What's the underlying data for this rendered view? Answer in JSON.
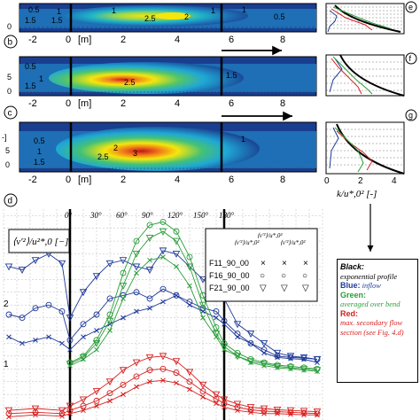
{
  "panels": {
    "a": {
      "label": "a",
      "contours": [
        "0.5",
        "1",
        "1.5",
        "1",
        "2.5",
        "2",
        "1",
        "1",
        "0.5",
        "1.5"
      ]
    },
    "b": {
      "label": "b",
      "contours": [
        "0.5",
        "1",
        "1.5",
        "2.5",
        "1.5"
      ]
    },
    "c": {
      "label": "c",
      "contours": [
        "0.5",
        "1",
        "1.5",
        "2",
        "2.5",
        "3",
        "1"
      ]
    },
    "d": {
      "label": "d"
    },
    "e": {
      "label": "e"
    },
    "f": {
      "label": "f"
    },
    "g": {
      "label": "g"
    }
  },
  "x_axis_ticks": [
    "-2",
    "0",
    "[m]",
    "2",
    "4",
    "6",
    "8"
  ],
  "side_xlabel": "k/u*,0² [-]",
  "side_ticks": [
    "0",
    "2",
    "4"
  ],
  "panel_c_left_tick": "-]",
  "angle_ticks": [
    "0°",
    "30°",
    "60°",
    "90°",
    "120°",
    "150°",
    "180°"
  ],
  "d_ylabel": "⟨v'²⟩/u²*,0 [−]",
  "d_yticks": [
    "2",
    "1"
  ],
  "series_legend": {
    "headers": [
      "⟨v'²⟩/u*,0²",
      "⟨v'²⟩/u*,0²",
      "⟨v'²⟩/u*,0²"
    ],
    "rows": [
      {
        "name": "F11_90_00",
        "symbols": [
          "×",
          "×",
          "×"
        ]
      },
      {
        "name": "F16_90_00",
        "symbols": [
          "○",
          "○",
          "○"
        ]
      },
      {
        "name": "F21_90_00",
        "symbols": [
          "▽",
          "▽",
          "▽"
        ]
      }
    ]
  },
  "legend": {
    "black_title": "Black:",
    "black_text": "exponential profile",
    "blue_title": "Blue:",
    "blue_text": "inflow",
    "green_title": "Green:",
    "green_text": "averaged over bend",
    "red_title": "Red:",
    "red_text": "max. secondary flow section (see Fig. 4.d)"
  },
  "colors": {
    "blue": "#1f3a9a",
    "green": "#2a9d3a",
    "red": "#d62020",
    "black": "#000000"
  },
  "chart_data": [
    {
      "type": "heatmap",
      "panel": "a",
      "xlim": [
        -2.5,
        9.5
      ],
      "x_ticks": [
        -2,
        0,
        2,
        4,
        6,
        8
      ],
      "vertical_lines_x": [
        0,
        5.8
      ],
      "hotspot_center_x": 3.0,
      "max_level": 2.5
    },
    {
      "type": "heatmap",
      "panel": "b",
      "xlim": [
        -2.5,
        9.5
      ],
      "x_ticks": [
        -2,
        0,
        2,
        4,
        6,
        8
      ],
      "vertical_lines_x": [
        0,
        5.8
      ],
      "hotspot_center_x": 2.3,
      "max_level": 3.5
    },
    {
      "type": "heatmap",
      "panel": "c",
      "xlim": [
        -2.5,
        9.5
      ],
      "x_ticks": [
        -2,
        0,
        2,
        4,
        6,
        8
      ],
      "vertical_lines_x": [
        0,
        5.8
      ],
      "hotspot_center_x": 2.8,
      "max_level": 4.0
    },
    {
      "type": "line",
      "panel": "d",
      "xlim": [
        -2.5,
        9.5
      ],
      "ylim": [
        0,
        3.3
      ],
      "angle_lines_x": [
        0,
        5.8
      ],
      "series": [
        {
          "name": "F11_90_00",
          "color": "blue",
          "marker": "x",
          "x": [
            -2.3,
            -1.8,
            -1.3,
            -0.8,
            -0.3,
            0,
            0.5,
            1,
            1.5,
            2,
            2.5,
            3,
            3.5,
            4,
            4.5,
            5,
            5.5,
            5.8,
            6.3,
            6.8,
            7.3,
            7.8,
            8.3,
            8.8,
            9.3
          ],
          "y": [
            1.3,
            1.2,
            1.25,
            1.3,
            1.2,
            1.1,
            1.3,
            1.4,
            1.5,
            1.6,
            1.7,
            1.75,
            1.85,
            1.95,
            1.8,
            1.7,
            1.6,
            1.5,
            1.3,
            1.2,
            1.05,
            0.98,
            0.96,
            0.95,
            0.9
          ]
        },
        {
          "name": "F16_90_00",
          "color": "blue",
          "marker": "o",
          "x": [
            -2.3,
            -1.8,
            -1.3,
            -0.8,
            -0.3,
            0,
            0.5,
            1,
            1.5,
            2,
            2.5,
            3,
            3.5,
            4,
            4.5,
            5,
            5.5,
            5.8,
            6.3,
            6.8,
            7.3,
            7.8,
            8.3,
            8.8,
            9.3
          ],
          "y": [
            1.65,
            1.6,
            1.75,
            1.8,
            1.7,
            1.25,
            1.5,
            1.65,
            1.9,
            1.95,
            2.0,
            1.9,
            2.05,
            1.95,
            1.85,
            1.75,
            1.7,
            1.55,
            1.35,
            1.2,
            1.1,
            1.0,
            0.98,
            0.97,
            0.95
          ]
        },
        {
          "name": "F21_90_00",
          "color": "blue",
          "marker": "v",
          "x": [
            -2.3,
            -1.8,
            -1.3,
            -0.8,
            -0.3,
            0,
            0.5,
            1,
            1.5,
            2,
            2.5,
            3,
            3.5,
            4,
            4.5,
            5,
            5.5,
            5.8,
            6.3,
            6.8,
            7.3,
            7.8,
            8.3,
            8.8,
            9.3
          ],
          "y": [
            2.4,
            2.35,
            2.5,
            2.6,
            2.45,
            1.6,
            2.0,
            2.25,
            2.45,
            2.5,
            2.4,
            2.35,
            2.65,
            2.6,
            2.4,
            2.2,
            2.05,
            1.9,
            1.5,
            1.35,
            1.2,
            1.05,
            1.0,
            0.98,
            0.95
          ]
        },
        {
          "name": "F11_90_00",
          "color": "green",
          "marker": "x",
          "x": [
            0,
            0.5,
            1,
            1.5,
            2,
            2.5,
            3,
            3.5,
            4,
            4.5,
            5,
            5.5,
            5.8,
            6.3,
            6.8,
            7.3,
            7.8,
            8.3,
            8.8,
            9.3
          ],
          "y": [
            0.85,
            0.95,
            1.1,
            1.4,
            1.9,
            2.3,
            2.5,
            2.55,
            2.4,
            2.1,
            1.6,
            1.3,
            1.1,
            1.0,
            0.9,
            0.85,
            0.82,
            0.8,
            0.78,
            0.76
          ]
        },
        {
          "name": "F16_90_00",
          "color": "green",
          "marker": "o",
          "x": [
            0,
            0.5,
            1,
            1.5,
            2,
            2.5,
            3,
            3.5,
            4,
            4.5,
            5,
            5.5,
            5.8,
            6.3,
            6.8,
            7.3,
            7.8,
            8.3,
            8.8,
            9.3
          ],
          "y": [
            0.9,
            1.0,
            1.25,
            1.65,
            2.3,
            2.8,
            3.05,
            3.1,
            2.95,
            2.55,
            1.95,
            1.45,
            1.2,
            1.05,
            0.95,
            0.9,
            0.86,
            0.84,
            0.82,
            0.8
          ]
        },
        {
          "name": "F21_90_00",
          "color": "green",
          "marker": "v",
          "x": [
            0,
            0.5,
            1,
            1.5,
            2,
            2.5,
            3,
            3.5,
            4,
            4.5,
            5,
            5.5,
            5.8,
            6.3,
            6.8,
            7.3,
            7.8,
            8.3,
            8.8,
            9.3
          ],
          "y": [
            0.88,
            0.98,
            1.2,
            1.55,
            2.1,
            2.6,
            2.85,
            2.95,
            2.8,
            2.4,
            1.8,
            1.35,
            1.15,
            1.0,
            0.92,
            0.88,
            0.84,
            0.82,
            0.8,
            0.78
          ]
        },
        {
          "name": "F11_90_00",
          "color": "red",
          "marker": "x",
          "x": [
            -2.3,
            -1.3,
            -0.3,
            0,
            0.5,
            1,
            1.5,
            2,
            2.5,
            3,
            3.5,
            4,
            4.5,
            5,
            5.5,
            5.8,
            6.3,
            6.8,
            7.3,
            7.8,
            8.3,
            8.8,
            9.3
          ],
          "y": [
            0.05,
            0.08,
            0.06,
            0.1,
            0.15,
            0.22,
            0.3,
            0.4,
            0.52,
            0.6,
            0.62,
            0.58,
            0.48,
            0.36,
            0.26,
            0.2,
            0.15,
            0.12,
            0.1,
            0.1,
            0.09,
            0.08,
            0.08
          ]
        },
        {
          "name": "F16_90_00",
          "color": "red",
          "marker": "o",
          "x": [
            -2.3,
            -1.3,
            -0.3,
            0,
            0.5,
            1,
            1.5,
            2,
            2.5,
            3,
            3.5,
            4,
            4.5,
            5,
            5.5,
            5.8,
            6.3,
            6.8,
            7.3,
            7.8,
            8.3,
            8.8,
            9.3
          ],
          "y": [
            0.1,
            0.12,
            0.1,
            0.15,
            0.22,
            0.3,
            0.42,
            0.55,
            0.68,
            0.78,
            0.8,
            0.74,
            0.6,
            0.45,
            0.33,
            0.26,
            0.2,
            0.16,
            0.14,
            0.13,
            0.12,
            0.11,
            0.1
          ]
        },
        {
          "name": "F21_90_00",
          "color": "red",
          "marker": "v",
          "x": [
            -2.3,
            -1.3,
            -0.3,
            0,
            0.5,
            1,
            1.5,
            2,
            2.5,
            3,
            3.5,
            4,
            4.5,
            5,
            5.5,
            5.8,
            6.3,
            6.8,
            7.3,
            7.8,
            8.3,
            8.8,
            9.3
          ],
          "y": [
            0.15,
            0.18,
            0.15,
            0.22,
            0.32,
            0.45,
            0.6,
            0.78,
            0.9,
            0.98,
            1.0,
            0.92,
            0.75,
            0.55,
            0.4,
            0.32,
            0.25,
            0.2,
            0.18,
            0.16,
            0.15,
            0.14,
            0.13
          ]
        }
      ]
    }
  ]
}
